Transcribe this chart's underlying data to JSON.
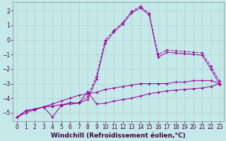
{
  "background_color": "#c5e8e8",
  "grid_color": "#b0d0d0",
  "line_color": "#990099",
  "xlabel": "Windchill (Refroidissement éolien,°C)",
  "xlabel_fontsize": 6.5,
  "tick_fontsize": 5.5,
  "xlim": [
    -0.5,
    23.5
  ],
  "ylim": [
    -5.6,
    2.6
  ],
  "yticks": [
    -5,
    -4,
    -3,
    -2,
    -1,
    0,
    1,
    2
  ],
  "xticks": [
    0,
    1,
    2,
    3,
    4,
    5,
    6,
    7,
    8,
    9,
    10,
    11,
    12,
    13,
    14,
    15,
    16,
    17,
    18,
    19,
    20,
    21,
    22,
    23
  ],
  "series": [
    {
      "x": [
        0,
        1,
        2,
        3,
        4,
        5,
        6,
        7,
        8,
        9,
        10,
        11,
        12,
        13,
        14,
        15,
        16,
        17,
        18,
        19,
        20,
        21,
        22,
        23
      ],
      "y": [
        -5.3,
        -5.0,
        -4.8,
        -4.6,
        -4.4,
        -4.2,
        -4.0,
        -3.8,
        -3.7,
        -3.6,
        -3.4,
        -3.3,
        -3.2,
        -3.1,
        -3.0,
        -3.0,
        -3.0,
        -3.0,
        -2.9,
        -2.9,
        -2.8,
        -2.8,
        -2.8,
        -3.0
      ],
      "linestyle": "-",
      "marker": "+"
    },
    {
      "x": [
        0,
        1,
        2,
        3,
        4,
        5,
        6,
        7,
        8,
        9,
        10,
        11,
        12,
        13,
        14,
        15,
        16,
        17,
        18,
        19,
        20,
        21,
        22,
        23
      ],
      "y": [
        -5.3,
        -4.85,
        -4.75,
        -4.6,
        -5.3,
        -4.5,
        -4.3,
        -4.35,
        -3.55,
        -4.4,
        -4.35,
        -4.2,
        -4.1,
        -4.0,
        -3.85,
        -3.7,
        -3.6,
        -3.5,
        -3.45,
        -3.4,
        -3.35,
        -3.3,
        -3.2,
        -3.0
      ],
      "linestyle": "-",
      "marker": "+"
    },
    {
      "x": [
        0,
        1,
        2,
        3,
        4,
        5,
        6,
        7,
        8,
        9,
        10,
        11,
        12,
        13,
        14,
        15,
        16,
        17,
        18,
        19,
        20,
        21,
        22,
        23
      ],
      "y": [
        -5.3,
        -4.85,
        -4.75,
        -4.6,
        -4.55,
        -4.45,
        -4.4,
        -4.35,
        -4.1,
        -2.7,
        -0.2,
        0.55,
        1.1,
        1.85,
        2.2,
        1.7,
        -1.2,
        -0.85,
        -0.9,
        -0.95,
        -1.0,
        -1.05,
        -2.0,
        -3.05
      ],
      "linestyle": "-",
      "marker": "+"
    },
    {
      "x": [
        0,
        1,
        2,
        3,
        4,
        5,
        6,
        7,
        8,
        9,
        10,
        11,
        12,
        13,
        14,
        15,
        16,
        17,
        18,
        19,
        20,
        21,
        22,
        23
      ],
      "y": [
        -5.3,
        -4.85,
        -4.75,
        -4.6,
        -4.55,
        -4.45,
        -4.4,
        -4.3,
        -3.9,
        -2.5,
        0.0,
        0.65,
        1.2,
        1.95,
        2.3,
        1.8,
        -1.0,
        -0.7,
        -0.75,
        -0.8,
        -0.85,
        -0.9,
        -1.8,
        -2.85
      ],
      "linestyle": "--",
      "marker": "+"
    }
  ]
}
